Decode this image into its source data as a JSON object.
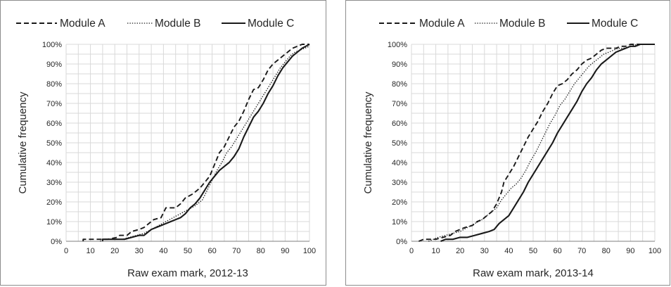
{
  "chart_data": [
    {
      "type": "line",
      "xlabel": "Raw exam mark, 2012-13",
      "ylabel": "Cumulative frequency",
      "xlim": [
        0,
        100
      ],
      "ylim": [
        0,
        100
      ],
      "x_ticks": [
        "0",
        "10",
        "20",
        "30",
        "40",
        "50",
        "60",
        "70",
        "80",
        "90",
        "100"
      ],
      "y_ticks": [
        "0%",
        "10%",
        "20%",
        "30%",
        "40%",
        "50%",
        "60%",
        "70%",
        "80%",
        "90%",
        "100%"
      ],
      "grid": true,
      "legend_position": "top",
      "series": [
        {
          "name": "Module A",
          "style": "dashed",
          "points": [
            [
              7,
              0
            ],
            [
              7,
              1
            ],
            [
              10,
              1
            ],
            [
              13,
              1
            ],
            [
              15,
              1
            ],
            [
              17,
              1
            ],
            [
              21,
              2
            ],
            [
              22,
              3
            ],
            [
              25,
              3
            ],
            [
              27,
              5
            ],
            [
              30,
              6
            ],
            [
              32,
              7
            ],
            [
              34,
              9
            ],
            [
              36,
              11
            ],
            [
              39,
              12
            ],
            [
              41,
              17
            ],
            [
              43,
              17
            ],
            [
              45,
              17
            ],
            [
              47,
              19
            ],
            [
              49,
              22
            ],
            [
              52,
              24
            ],
            [
              55,
              27
            ],
            [
              57,
              30
            ],
            [
              59,
              33
            ],
            [
              61,
              39
            ],
            [
              63,
              45
            ],
            [
              65,
              48
            ],
            [
              67,
              53
            ],
            [
              69,
              58
            ],
            [
              71,
              61
            ],
            [
              73,
              66
            ],
            [
              75,
              72
            ],
            [
              77,
              77
            ],
            [
              79,
              78
            ],
            [
              81,
              82
            ],
            [
              83,
              87
            ],
            [
              85,
              90
            ],
            [
              87,
              92
            ],
            [
              89,
              94
            ],
            [
              91,
              96
            ],
            [
              93,
              98
            ],
            [
              95,
              99
            ],
            [
              97,
              100
            ],
            [
              100,
              100
            ]
          ]
        },
        {
          "name": "Module B",
          "style": "dotted",
          "points": [
            [
              14,
              0
            ],
            [
              15,
              1
            ],
            [
              20,
              1
            ],
            [
              23,
              1
            ],
            [
              26,
              2
            ],
            [
              29,
              3
            ],
            [
              32,
              4
            ],
            [
              35,
              6
            ],
            [
              38,
              8
            ],
            [
              41,
              10
            ],
            [
              44,
              12
            ],
            [
              47,
              14
            ],
            [
              50,
              16
            ],
            [
              53,
              18
            ],
            [
              56,
              21
            ],
            [
              58,
              26
            ],
            [
              60,
              31
            ],
            [
              62,
              36
            ],
            [
              64,
              40
            ],
            [
              66,
              45
            ],
            [
              68,
              48
            ],
            [
              70,
              52
            ],
            [
              72,
              56
            ],
            [
              74,
              60
            ],
            [
              76,
              64
            ],
            [
              78,
              68
            ],
            [
              80,
              72
            ],
            [
              82,
              76
            ],
            [
              84,
              80
            ],
            [
              86,
              84
            ],
            [
              88,
              88
            ],
            [
              90,
              91
            ],
            [
              92,
              94
            ],
            [
              94,
              96
            ],
            [
              96,
              97
            ],
            [
              98,
              98
            ],
            [
              100,
              99
            ]
          ]
        },
        {
          "name": "Module C",
          "style": "solid",
          "points": [
            [
              15,
              0
            ],
            [
              15,
              1
            ],
            [
              20,
              1
            ],
            [
              24,
              1
            ],
            [
              27,
              2
            ],
            [
              30,
              3
            ],
            [
              32,
              3
            ],
            [
              35,
              6
            ],
            [
              37,
              7
            ],
            [
              39,
              8
            ],
            [
              41,
              9
            ],
            [
              43,
              10
            ],
            [
              45,
              11
            ],
            [
              47,
              12
            ],
            [
              49,
              14
            ],
            [
              51,
              17
            ],
            [
              53,
              19
            ],
            [
              55,
              22
            ],
            [
              57,
              26
            ],
            [
              59,
              30
            ],
            [
              61,
              33
            ],
            [
              63,
              36
            ],
            [
              65,
              38
            ],
            [
              67,
              40
            ],
            [
              69,
              43
            ],
            [
              71,
              47
            ],
            [
              73,
              53
            ],
            [
              75,
              58
            ],
            [
              77,
              63
            ],
            [
              79,
              66
            ],
            [
              81,
              70
            ],
            [
              83,
              75
            ],
            [
              85,
              79
            ],
            [
              87,
              84
            ],
            [
              89,
              88
            ],
            [
              91,
              91
            ],
            [
              93,
              94
            ],
            [
              95,
              96
            ],
            [
              97,
              98
            ],
            [
              100,
              100
            ]
          ]
        }
      ]
    },
    {
      "type": "line",
      "xlabel": "Raw exam mark, 2013-14",
      "ylabel": "Cumulative frequency",
      "xlim": [
        0,
        100
      ],
      "ylim": [
        0,
        100
      ],
      "x_ticks": [
        "0",
        "10",
        "20",
        "30",
        "40",
        "50",
        "60",
        "70",
        "80",
        "90",
        "100"
      ],
      "y_ticks": [
        "0%",
        "10%",
        "20%",
        "30%",
        "40%",
        "50%",
        "60%",
        "70%",
        "80%",
        "90%",
        "100%"
      ],
      "grid": true,
      "legend_position": "top",
      "series": [
        {
          "name": "Module A",
          "style": "dashed",
          "points": [
            [
              3,
              0
            ],
            [
              5,
              1
            ],
            [
              10,
              1
            ],
            [
              13,
              2
            ],
            [
              16,
              3
            ],
            [
              18,
              5
            ],
            [
              20,
              6
            ],
            [
              22,
              7
            ],
            [
              25,
              8
            ],
            [
              27,
              10
            ],
            [
              29,
              11
            ],
            [
              31,
              13
            ],
            [
              33,
              15
            ],
            [
              35,
              19
            ],
            [
              37,
              25
            ],
            [
              38,
              30
            ],
            [
              40,
              34
            ],
            [
              42,
              38
            ],
            [
              44,
              43
            ],
            [
              46,
              48
            ],
            [
              48,
              53
            ],
            [
              50,
              57
            ],
            [
              52,
              61
            ],
            [
              54,
              66
            ],
            [
              56,
              70
            ],
            [
              58,
              75
            ],
            [
              60,
              79
            ],
            [
              62,
              80
            ],
            [
              64,
              82
            ],
            [
              66,
              85
            ],
            [
              68,
              87
            ],
            [
              70,
              90
            ],
            [
              72,
              92
            ],
            [
              74,
              93
            ],
            [
              76,
              95
            ],
            [
              78,
              97
            ],
            [
              80,
              98
            ],
            [
              82,
              98
            ],
            [
              84,
              98
            ],
            [
              86,
              99
            ],
            [
              88,
              99
            ],
            [
              90,
              100
            ],
            [
              100,
              100
            ]
          ]
        },
        {
          "name": "Module B",
          "style": "dotted",
          "points": [
            [
              7,
              0
            ],
            [
              9,
              1
            ],
            [
              11,
              2
            ],
            [
              14,
              3
            ],
            [
              17,
              4
            ],
            [
              20,
              5
            ],
            [
              23,
              7
            ],
            [
              26,
              9
            ],
            [
              29,
              11
            ],
            [
              31,
              13
            ],
            [
              33,
              15
            ],
            [
              35,
              17
            ],
            [
              37,
              21
            ],
            [
              39,
              24
            ],
            [
              41,
              27
            ],
            [
              43,
              29
            ],
            [
              45,
              32
            ],
            [
              47,
              36
            ],
            [
              49,
              41
            ],
            [
              51,
              45
            ],
            [
              53,
              50
            ],
            [
              55,
              55
            ],
            [
              57,
              60
            ],
            [
              59,
              64
            ],
            [
              61,
              69
            ],
            [
              63,
              72
            ],
            [
              65,
              76
            ],
            [
              67,
              80
            ],
            [
              69,
              83
            ],
            [
              71,
              86
            ],
            [
              73,
              89
            ],
            [
              75,
              91
            ],
            [
              77,
              93
            ],
            [
              79,
              95
            ],
            [
              81,
              96
            ],
            [
              83,
              97
            ],
            [
              85,
              98
            ],
            [
              87,
              98
            ],
            [
              90,
              99
            ],
            [
              93,
              100
            ],
            [
              100,
              100
            ]
          ]
        },
        {
          "name": "Module C",
          "style": "solid",
          "points": [
            [
              12,
              0
            ],
            [
              14,
              1
            ],
            [
              17,
              1
            ],
            [
              20,
              2
            ],
            [
              23,
              2
            ],
            [
              26,
              3
            ],
            [
              29,
              4
            ],
            [
              32,
              5
            ],
            [
              34,
              6
            ],
            [
              36,
              9
            ],
            [
              38,
              11
            ],
            [
              40,
              13
            ],
            [
              42,
              17
            ],
            [
              44,
              21
            ],
            [
              46,
              25
            ],
            [
              48,
              30
            ],
            [
              50,
              34
            ],
            [
              52,
              38
            ],
            [
              54,
              42
            ],
            [
              56,
              46
            ],
            [
              58,
              50
            ],
            [
              60,
              55
            ],
            [
              62,
              59
            ],
            [
              64,
              63
            ],
            [
              66,
              67
            ],
            [
              68,
              71
            ],
            [
              70,
              76
            ],
            [
              72,
              80
            ],
            [
              74,
              83
            ],
            [
              76,
              87
            ],
            [
              78,
              90
            ],
            [
              80,
              92
            ],
            [
              82,
              94
            ],
            [
              84,
              96
            ],
            [
              86,
              97
            ],
            [
              88,
              98
            ],
            [
              90,
              99
            ],
            [
              92,
              99
            ],
            [
              94,
              100
            ],
            [
              100,
              100
            ]
          ]
        }
      ]
    }
  ]
}
